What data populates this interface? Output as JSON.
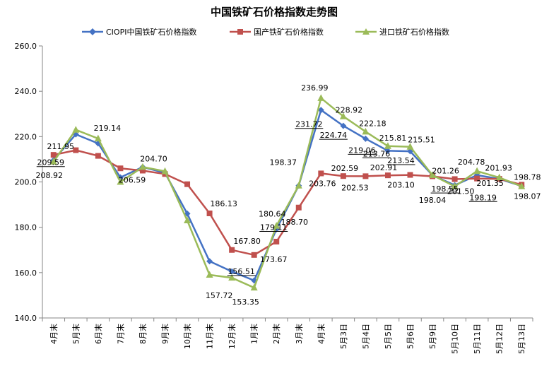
{
  "chart_data": {
    "type": "line",
    "title": "中国铁矿石价格指数走势图",
    "xlabel": "",
    "ylabel": "",
    "ylim": [
      140,
      260
    ],
    "yticks": [
      "140.0",
      "160.0",
      "180.0",
      "200.0",
      "220.0",
      "240.0",
      "260.0"
    ],
    "grid": false,
    "legend_position": "top",
    "categories": [
      "4月末",
      "5月末",
      "6月末",
      "7月末",
      "8月末",
      "9月末",
      "10月末",
      "11月末",
      "12月末",
      "1月末",
      "2月末",
      "3月末",
      "4月末",
      "5月3日",
      "5月4日",
      "5月5日",
      "5月6日",
      "5月9日",
      "5月10日",
      "5月11日",
      "5月12日",
      "5月13日"
    ],
    "series": [
      {
        "name": "CIOPI中国铁矿石价格指数",
        "color": "#4472C4",
        "marker": "diamond",
        "values": [
          209.59,
          221.0,
          217.0,
          202.0,
          206.59,
          204.0,
          186.0,
          165.0,
          160.5,
          156.51,
          179.11,
          198.37,
          231.72,
          224.74,
          219.06,
          213.76,
          213.54,
          203.0,
          198.55,
          203.0,
          201.35,
          198.19
        ]
      },
      {
        "name": "国产铁矿石价格指数",
        "color": "#C0504D",
        "marker": "square",
        "values": [
          211.95,
          214.0,
          211.5,
          206.0,
          205.0,
          203.5,
          199.0,
          186.13,
          170.0,
          167.8,
          173.67,
          188.7,
          203.76,
          202.59,
          202.53,
          202.91,
          203.1,
          202.5,
          201.26,
          201.5,
          201.35,
          198.78
        ]
      },
      {
        "name": "进口铁矿石价格指数",
        "color": "#9BBB59",
        "marker": "triangle",
        "values": [
          208.92,
          223.0,
          219.14,
          200.0,
          206.59,
          204.7,
          183.0,
          159.0,
          157.72,
          153.35,
          180.64,
          198.37,
          236.99,
          228.92,
          222.18,
          215.81,
          215.51,
          203.0,
          198.04,
          204.78,
          201.93,
          198.07
        ]
      }
    ],
    "data_labels": [
      {
        "text": "211.95",
        "cat": 0,
        "y": 211.95,
        "underline": false
      },
      {
        "text": "209.59",
        "cat": 0,
        "y": 209.59,
        "underline": true
      },
      {
        "text": "208.92",
        "cat": 0,
        "y": 208.92,
        "underline": false
      },
      {
        "text": "219.14",
        "cat": 2,
        "y": 219.14,
        "underline": false
      },
      {
        "text": "204.70",
        "cat": 5,
        "y": 204.7,
        "underline": false
      },
      {
        "text": "206.59",
        "cat": 4,
        "y": 206.59,
        "underline": false
      },
      {
        "text": "186.13",
        "cat": 7,
        "y": 186.13,
        "underline": false
      },
      {
        "text": "167.80",
        "cat": 9,
        "y": 167.8,
        "underline": false
      },
      {
        "text": "156.51",
        "cat": 9,
        "y": 156.51,
        "underline": true
      },
      {
        "text": "157.72",
        "cat": 8,
        "y": 157.72,
        "underline": false
      },
      {
        "text": "153.35",
        "cat": 9,
        "y": 153.35,
        "underline": false
      },
      {
        "text": "180.64",
        "cat": 10,
        "y": 180.64,
        "underline": false
      },
      {
        "text": "179.11",
        "cat": 10,
        "y": 179.11,
        "underline": true
      },
      {
        "text": "173.67",
        "cat": 10,
        "y": 173.67,
        "underline": false
      },
      {
        "text": "198.37",
        "cat": 11,
        "y": 198.37,
        "underline": false
      },
      {
        "text": "188.70",
        "cat": 11,
        "y": 188.7,
        "underline": false
      },
      {
        "text": "236.99",
        "cat": 12,
        "y": 236.99,
        "underline": false
      },
      {
        "text": "231.72",
        "cat": 12,
        "y": 231.72,
        "underline": true
      },
      {
        "text": "203.76",
        "cat": 12,
        "y": 203.76,
        "underline": false
      },
      {
        "text": "228.92",
        "cat": 13,
        "y": 228.92,
        "underline": false
      },
      {
        "text": "224.74",
        "cat": 13,
        "y": 224.74,
        "underline": true
      },
      {
        "text": "202.59",
        "cat": 13,
        "y": 202.59,
        "underline": false
      },
      {
        "text": "222.18",
        "cat": 14,
        "y": 222.18,
        "underline": false
      },
      {
        "text": "219.06",
        "cat": 14,
        "y": 219.06,
        "underline": true
      },
      {
        "text": "202.53",
        "cat": 14,
        "y": 202.53,
        "underline": false
      },
      {
        "text": "215.81",
        "cat": 15,
        "y": 215.81,
        "underline": false
      },
      {
        "text": "213.76",
        "cat": 15,
        "y": 213.76,
        "underline": true
      },
      {
        "text": "202.91",
        "cat": 15,
        "y": 202.91,
        "underline": false
      },
      {
        "text": "215.51",
        "cat": 16,
        "y": 215.51,
        "underline": false
      },
      {
        "text": "213.54",
        "cat": 16,
        "y": 213.54,
        "underline": true
      },
      {
        "text": "203.10",
        "cat": 16,
        "y": 203.1,
        "underline": false
      },
      {
        "text": "201.26",
        "cat": 18,
        "y": 201.26,
        "underline": false
      },
      {
        "text": "198.55",
        "cat": 18,
        "y": 198.55,
        "underline": true
      },
      {
        "text": "198.04",
        "cat": 17,
        "y": 198.04,
        "underline": false
      },
      {
        "text": "204.78",
        "cat": 19,
        "y": 204.78,
        "underline": false
      },
      {
        "text": "201.50",
        "cat": 19,
        "y": 201.5,
        "underline": false
      },
      {
        "text": "201.93",
        "cat": 20,
        "y": 201.93,
        "underline": false
      },
      {
        "text": "201.35",
        "cat": 20,
        "y": 201.35,
        "underline": false
      },
      {
        "text": "198.19",
        "cat": 20,
        "y": 198.19,
        "underline": true
      },
      {
        "text": "198.78",
        "cat": 21,
        "y": 198.78,
        "underline": false
      },
      {
        "text": "198.07",
        "cat": 21,
        "y": 198.07,
        "underline": false
      }
    ]
  }
}
